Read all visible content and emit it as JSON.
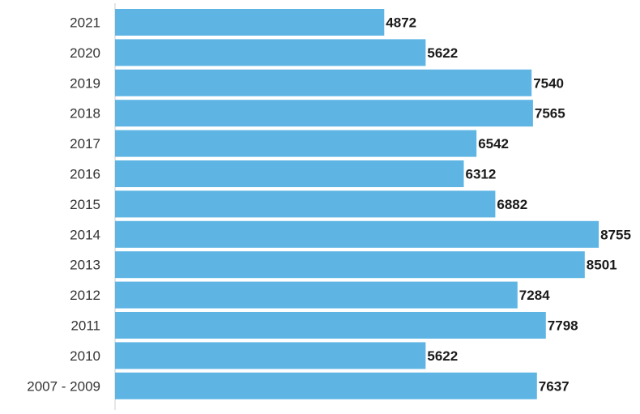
{
  "chart_data": {
    "type": "bar",
    "orientation": "horizontal",
    "categories": [
      "2021",
      "2020",
      "2019",
      "2018",
      "2017",
      "2016",
      "2015",
      "2014",
      "2013",
      "2012",
      "2011",
      "2010",
      "2007 - 2009"
    ],
    "values": [
      4872,
      5622,
      7540,
      7565,
      6542,
      6312,
      6882,
      8755,
      8501,
      7284,
      7798,
      5622,
      7637
    ],
    "bar_color": "#5eb5e4",
    "title": "",
    "xlabel": "",
    "ylabel": "",
    "grid": false,
    "legend": "none",
    "data_labels": true
  }
}
